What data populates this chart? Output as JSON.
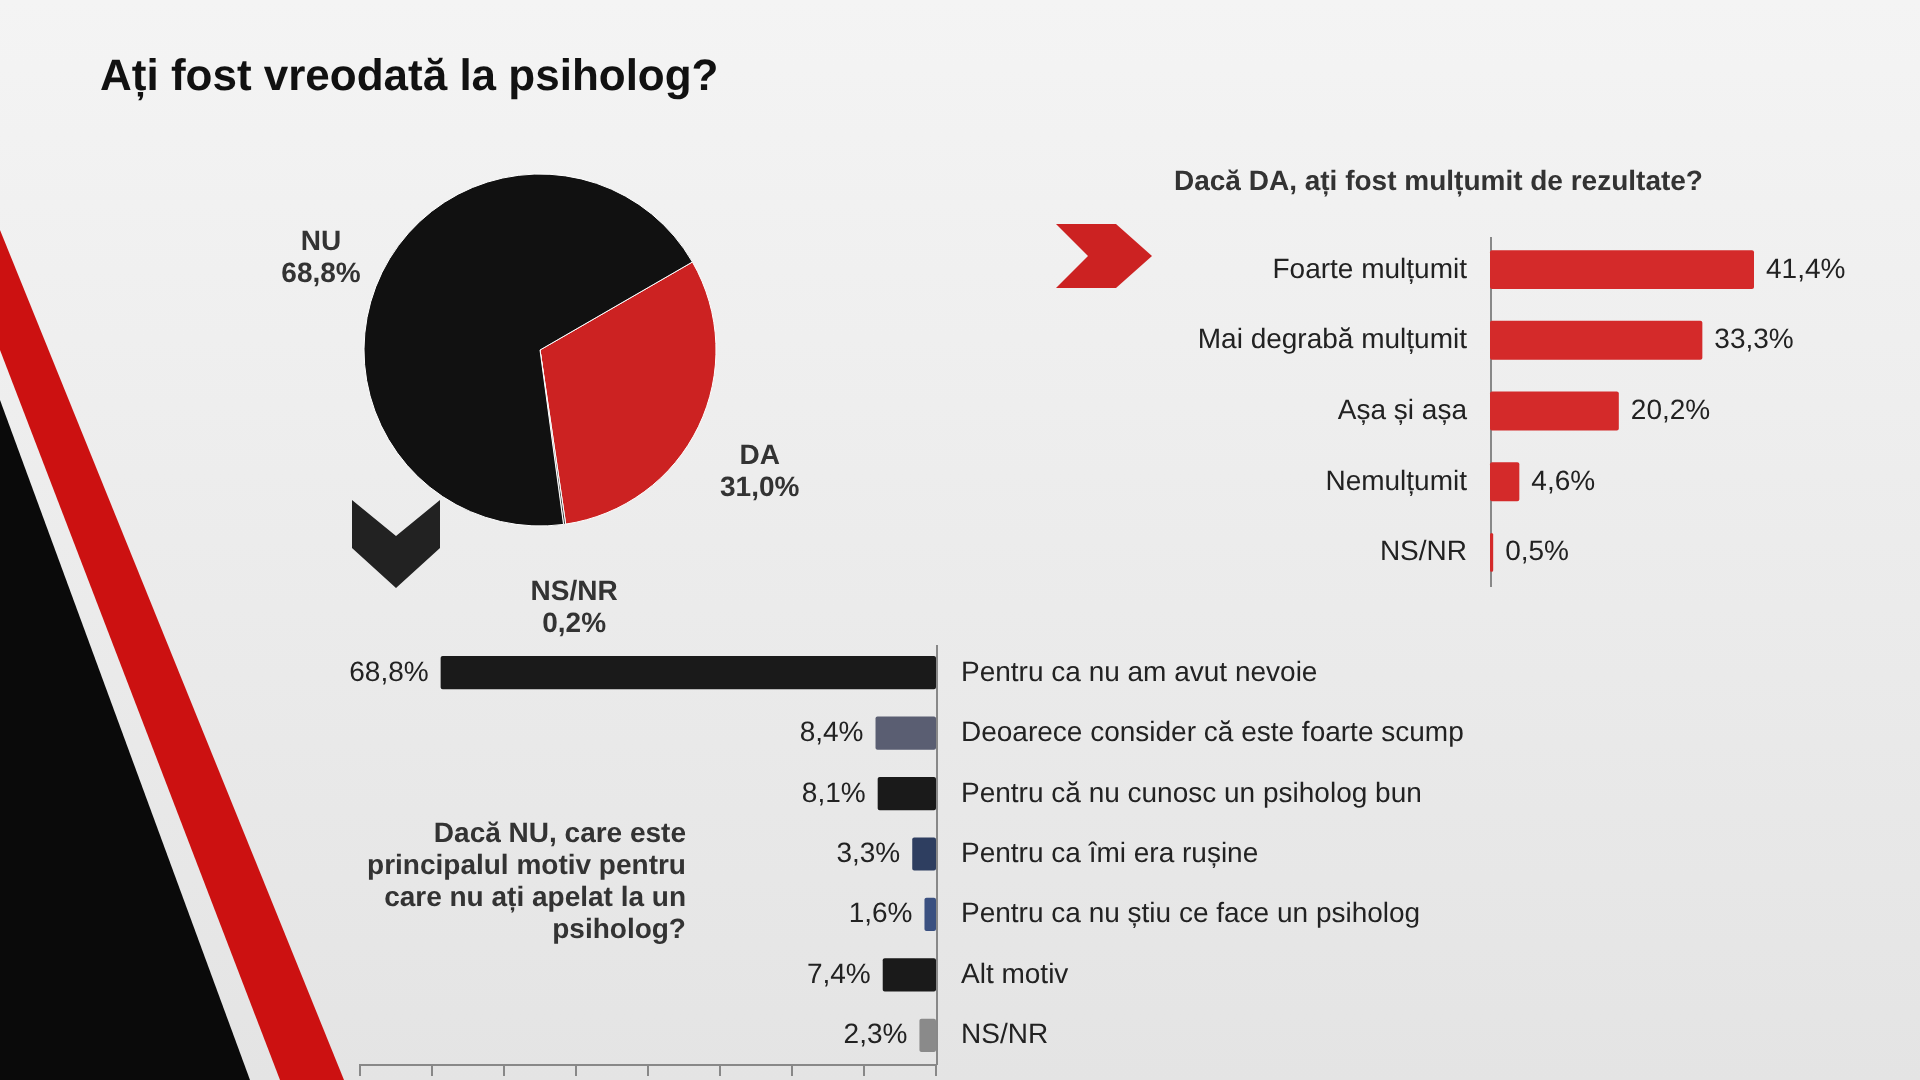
{
  "chart_data": [
    {
      "type": "pie",
      "title": "Ați fost vreodată la psiholog?",
      "categories": [
        "DA",
        "NS/NR",
        "NU"
      ],
      "values": [
        31.0,
        0.2,
        68.8
      ],
      "colors": [
        "#cc2222",
        "#444444",
        "#111111"
      ],
      "value_labels": [
        "31,0%",
        "0,2%",
        "68,8%"
      ]
    },
    {
      "type": "bar",
      "orientation": "horizontal",
      "title": "Dacă DA, ați fost mulțumit  de rezultate?",
      "categories": [
        "Foarte mulțumit",
        "Mai degrabă mulțumit",
        "Așa și așa",
        "Nemulțumit",
        "NS/NR"
      ],
      "values": [
        41.4,
        33.3,
        20.2,
        4.6,
        0.5
      ],
      "color": "#d42a2a",
      "value_labels": [
        "41,4%",
        "33,3%",
        "20,2%",
        "4,6%",
        "0,5%"
      ],
      "tick_labels": "y"
    },
    {
      "type": "bar",
      "orientation": "horizontal",
      "title": "Dacă NU, care este principalul motiv pentru care nu ați apelat la un psiholog?",
      "categories": [
        "Pentru ca nu am avut nevoie",
        "Deoarece consider că este foarte scump",
        "Pentru că nu cunosc un psiholog bun",
        "Pentru ca îmi era rușine",
        "Pentru ca nu știu ce face un psiholog",
        "Alt motiv",
        "NS/NR"
      ],
      "values": [
        68.8,
        8.4,
        8.1,
        3.3,
        1.6,
        7.4,
        2.3
      ],
      "colors": [
        "#1a1a1a",
        "#5a5e72",
        "#1a1a1a",
        "#2e3e60",
        "#3a5080",
        "#1a1a1a",
        "#8a8a8a"
      ],
      "xlim": [
        80,
        0
      ],
      "xticks": [
        {
          "value": 80,
          "label": null
        },
        {
          "value": 70,
          "label": null
        },
        {
          "value": 60,
          "label": null
        },
        {
          "value": 50,
          "label": null
        },
        {
          "value": 40,
          "label": null
        },
        {
          "value": 30,
          "label": null
        },
        {
          "value": 20,
          "label": null
        },
        {
          "value": 10,
          "label": null
        },
        {
          "value": 0,
          "label": null
        }
      ],
      "value_labels": [
        "68,8%",
        "8,4%",
        "8,1%",
        "3,3%",
        "1,6%",
        "7,4%",
        "2,3%"
      ],
      "tick_labels": "y"
    }
  ]
}
